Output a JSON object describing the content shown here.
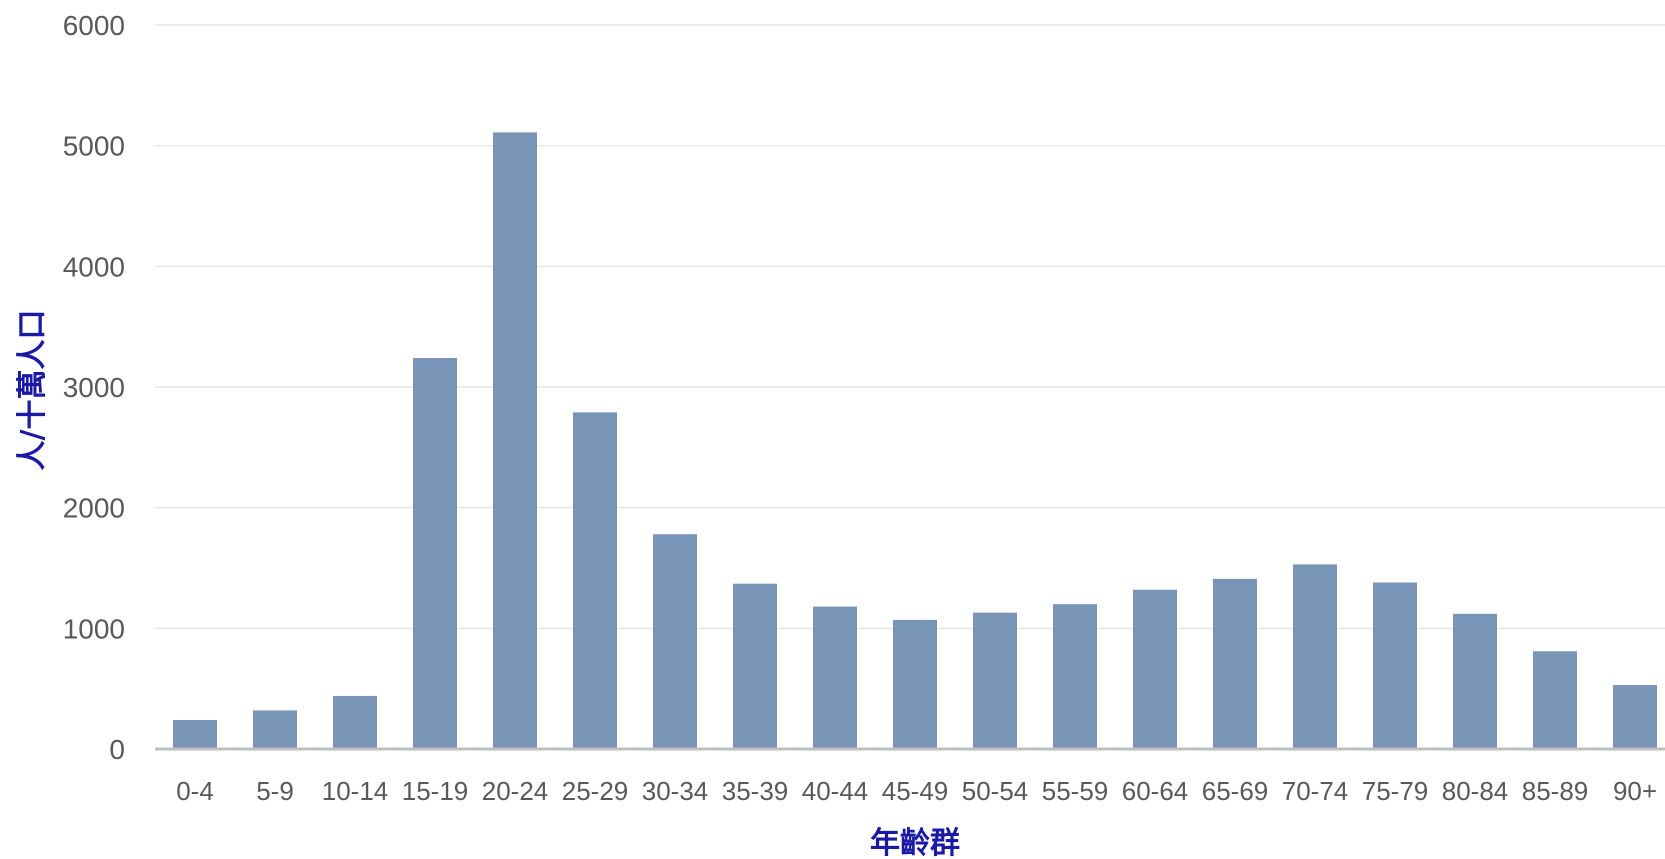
{
  "chart_data": {
    "type": "bar",
    "title": "",
    "xlabel": "年齡群",
    "ylabel": "人/十萬人口",
    "categories": [
      "0-4",
      "5-9",
      "10-14",
      "15-19",
      "20-24",
      "25-29",
      "30-34",
      "35-39",
      "40-44",
      "45-49",
      "50-54",
      "55-59",
      "60-64",
      "65-69",
      "70-74",
      "75-79",
      "80-84",
      "85-89",
      "90+"
    ],
    "values": [
      240,
      320,
      440,
      3240,
      5110,
      2790,
      1780,
      1370,
      1180,
      1070,
      1130,
      1200,
      1320,
      1410,
      1530,
      1380,
      1120,
      810,
      530
    ],
    "ylim": [
      0,
      6000
    ],
    "yticks": [
      0,
      1000,
      2000,
      3000,
      4000,
      5000,
      6000
    ],
    "grid": true,
    "legend": "none",
    "colors": {
      "bar": "#7895b8",
      "grid": "#e6e6e6",
      "axis": "#bfbfbf",
      "tick_text": "#595959",
      "axis_title": "#1a1aa6"
    }
  }
}
